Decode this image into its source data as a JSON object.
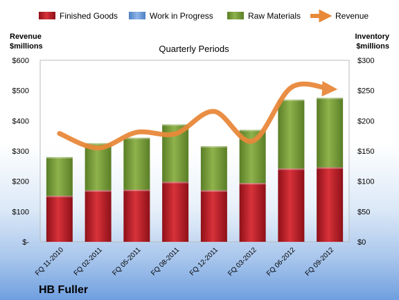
{
  "company": "HB Fuller",
  "chart_data": {
    "type": "bar",
    "subtitle": "Quarterly Periods",
    "left_axis": {
      "title_line1": "Revenue",
      "title_line2": "$millions",
      "ylim": [
        0,
        600
      ],
      "ticks": [
        0,
        100,
        200,
        300,
        400,
        500,
        600
      ],
      "tick_labels": [
        "$-",
        "$100",
        "$200",
        "$300",
        "$400",
        "$500",
        "$600"
      ]
    },
    "right_axis": {
      "title_line1": "Inventory",
      "title_line2": "$millions",
      "ylim": [
        0,
        300
      ],
      "ticks": [
        0,
        50,
        100,
        150,
        200,
        250,
        300
      ],
      "tick_labels": [
        "$0",
        "$50",
        "$100",
        "$150",
        "$200",
        "$250",
        "$300"
      ]
    },
    "categories": [
      "FQ 11-2010",
      "FQ 02-2011",
      "FQ 05-2011",
      "FQ 08-2011",
      "FQ 12-2011",
      "FQ 03-2012",
      "FQ 06-2012",
      "FQ 09-2012"
    ],
    "stack_axis": "right",
    "series": [
      {
        "name": "Finished Goods",
        "kind": "bar",
        "color": "#c0202a",
        "values": [
          76,
          85,
          86,
          99,
          85,
          97,
          121,
          123
        ]
      },
      {
        "name": "Work in Progress",
        "kind": "bar",
        "color": "#6f9fdf",
        "values": [
          0,
          0,
          0,
          0,
          0,
          0,
          0,
          0
        ]
      },
      {
        "name": "Raw Materials",
        "kind": "bar",
        "color": "#7aa03a",
        "values": [
          64,
          78,
          86,
          95,
          73,
          88,
          114,
          115
        ]
      },
      {
        "name": "Revenue",
        "kind": "line",
        "axis": "left",
        "color": "#e8893a",
        "values": [
          358,
          310,
          362,
          357,
          431,
          333,
          510,
          505
        ]
      }
    ],
    "grid": false,
    "legend": "top"
  }
}
